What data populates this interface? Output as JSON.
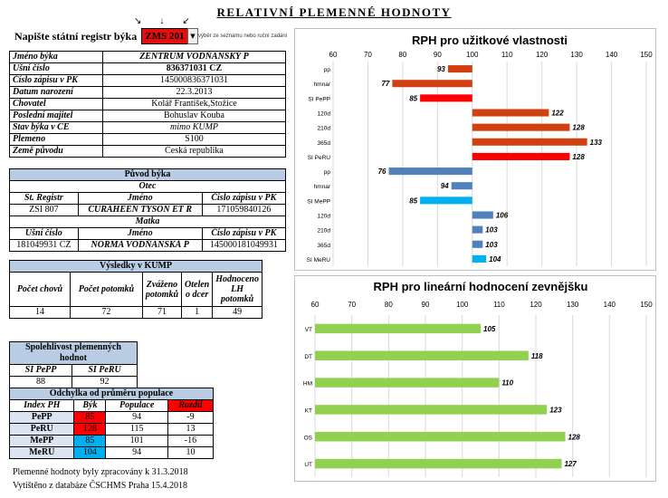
{
  "title": "RELATIVNÍ PLEMENNÉ HODNOTY",
  "prompt": "Napište státní registr býka",
  "registry_value": "ZMS 201",
  "hint": "výběr ze seznamu nebo ruční zadání",
  "arrows": "↘↓↙",
  "bull_info": [
    {
      "label": "Jméno býka",
      "value": "ZENTRUM VODŇANSKÝ P",
      "style": "bi"
    },
    {
      "label": "Ušní číslo",
      "value": "836371031 CZ",
      "style": "b"
    },
    {
      "label": "Číslo zápisu v PK",
      "value": "145000836371031",
      "style": ""
    },
    {
      "label": "Datum narození",
      "value": "22.3.2013",
      "style": ""
    },
    {
      "label": "Chovatel",
      "value": "Kolář František,Stožice",
      "style": ""
    },
    {
      "label": "Poslední majitel",
      "value": "Bohuslav Kouba",
      "style": ""
    },
    {
      "label": "Stav býka v CE",
      "value": "mimo KUMP",
      "style": "i"
    },
    {
      "label": "Plemeno",
      "value": "S100",
      "style": ""
    },
    {
      "label": "Země původu",
      "value": "Česká republika",
      "style": ""
    }
  ],
  "origin": {
    "header": "Původ býka",
    "father_label": "Otec",
    "mother_label": "Matka",
    "columns_father": [
      "St. Registr",
      "Jméno",
      "Číslo zápisu v PK"
    ],
    "father": [
      "ZSI 807",
      "CURAHEEN TYSON ET R",
      "171059840126"
    ],
    "columns_mother": [
      "Ušní číslo",
      "Jméno",
      "Číslo zápisu v PK"
    ],
    "mother": [
      "181049931 CZ",
      "NORMA VODŇANSKÁ P",
      "145000181049931"
    ]
  },
  "kump": {
    "header": "Výsledky v KUMP",
    "columns": [
      "Počet chovů",
      "Počet potomků",
      "Zváženo potomků",
      "Otelen o dcer",
      "Hodnoceno LH potomků"
    ],
    "values": [
      "14",
      "72",
      "71",
      "1",
      "49"
    ]
  },
  "reliability": {
    "header": "Spolehlivost plemenných hodnot",
    "columns": [
      "SI PePP",
      "SI PeRU"
    ],
    "values": [
      "88",
      "92"
    ]
  },
  "deviation": {
    "header": "Odchylka od průměru populace",
    "columns": [
      "Index PH",
      "Býk",
      "Populace",
      "Rozdíl"
    ],
    "rows": [
      {
        "index": "PePP",
        "bull": "85",
        "pop": "94",
        "diff": "-9",
        "color": "#ff0000"
      },
      {
        "index": "PeRU",
        "bull": "128",
        "pop": "115",
        "diff": "13",
        "color": "#ff0000"
      },
      {
        "index": "MePP",
        "bull": "85",
        "pop": "101",
        "diff": "-16",
        "color": "#00b0f0"
      },
      {
        "index": "MeRU",
        "bull": "104",
        "pop": "94",
        "diff": "10",
        "color": "#00b0f0"
      }
    ]
  },
  "notes": {
    "processed": "Plemenné hodnoty byly zpracovány k 31.3.2018",
    "printed": "Vytištěno z databáze  ČSCHMS Praha   15.4.2018"
  },
  "chart_data": [
    {
      "type": "bar",
      "orientation": "horizontal",
      "title": "RPH pro užitkové vlastnosti",
      "xlim": [
        60,
        150
      ],
      "ticks": [
        60,
        70,
        80,
        90,
        100,
        110,
        120,
        130,
        140,
        150
      ],
      "baseline": 100,
      "grid": true,
      "categories": [
        "pp",
        "hmnar",
        "SI PePP",
        "120d",
        "210d",
        "365d",
        "SI PeRU",
        "pp",
        "hmnar",
        "SI MePP",
        "120d",
        "210d",
        "365d",
        "SI MeRU"
      ],
      "values": [
        93,
        77,
        85,
        122,
        128,
        133,
        128,
        76,
        94,
        85,
        106,
        103,
        103,
        104
      ],
      "colors": [
        "#d04010",
        "#d04010",
        "#ff0000",
        "#d04010",
        "#d04010",
        "#d04010",
        "#ff0000",
        "#4f81bd",
        "#4f81bd",
        "#00b0f0",
        "#4f81bd",
        "#4f81bd",
        "#4f81bd",
        "#00b0f0"
      ]
    },
    {
      "type": "bar",
      "orientation": "horizontal",
      "title": "RPH pro lineární hodnocení zevnějšku",
      "xlim": [
        60,
        150
      ],
      "ticks": [
        60,
        70,
        80,
        90,
        100,
        110,
        120,
        130,
        140,
        150
      ],
      "grid": true,
      "categories": [
        "VT",
        "DT",
        "HM",
        "KT",
        "OS",
        "UT"
      ],
      "values": [
        105,
        118,
        110,
        123,
        128,
        127
      ],
      "colors": [
        "#92d050",
        "#92d050",
        "#92d050",
        "#92d050",
        "#92d050",
        "#92d050"
      ]
    }
  ]
}
